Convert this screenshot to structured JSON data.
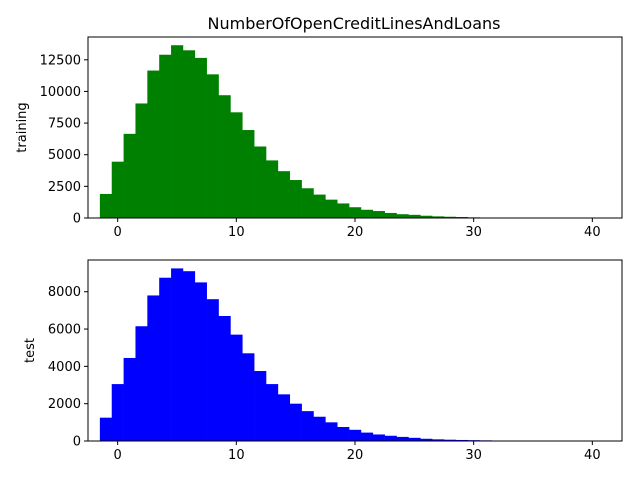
{
  "chart_data": [
    {
      "type": "bar",
      "title": "NumberOfOpenCreditLinesAndLoans",
      "xlabel": "",
      "ylabel": "training",
      "color": "#008000",
      "bin_width": 1,
      "x": [
        -1,
        0,
        1,
        2,
        3,
        4,
        5,
        6,
        7,
        8,
        9,
        10,
        11,
        12,
        13,
        14,
        15,
        16,
        17,
        18,
        19,
        20,
        21,
        22,
        23,
        24,
        25,
        26,
        27,
        28,
        29,
        30,
        31,
        32,
        33,
        34,
        35,
        36,
        37,
        38,
        39,
        40
      ],
      "values": [
        1900,
        4450,
        6650,
        9050,
        11650,
        12900,
        13650,
        13250,
        12650,
        11350,
        9700,
        8350,
        6950,
        5650,
        4550,
        3700,
        3000,
        2350,
        1850,
        1450,
        1150,
        850,
        650,
        550,
        400,
        300,
        250,
        180,
        130,
        100,
        80,
        50,
        40,
        30,
        20,
        15,
        10,
        10,
        5,
        5,
        5,
        5
      ],
      "xlim": [
        -2.5,
        42.5
      ],
      "ylim": [
        0,
        14300
      ],
      "xticks": [
        "0",
        "10",
        "20",
        "30",
        "40"
      ],
      "yticks": [
        "0",
        "2500",
        "5000",
        "7500",
        "10000",
        "12500"
      ]
    },
    {
      "type": "bar",
      "title": "",
      "xlabel": "",
      "ylabel": "test",
      "color": "#0000ff",
      "bin_width": 1,
      "x": [
        -1,
        0,
        1,
        2,
        3,
        4,
        5,
        6,
        7,
        8,
        9,
        10,
        11,
        12,
        13,
        14,
        15,
        16,
        17,
        18,
        19,
        20,
        21,
        22,
        23,
        24,
        25,
        26,
        27,
        28,
        29,
        30,
        31,
        32,
        33,
        34,
        35,
        36,
        37,
        38,
        39,
        40
      ],
      "values": [
        1250,
        3050,
        4450,
        6150,
        7800,
        8750,
        9250,
        9100,
        8500,
        7600,
        6700,
        5700,
        4700,
        3750,
        3050,
        2500,
        2000,
        1600,
        1300,
        1000,
        750,
        600,
        450,
        350,
        280,
        220,
        170,
        120,
        90,
        70,
        55,
        45,
        35,
        25,
        18,
        12,
        10,
        8,
        5,
        5,
        5,
        5
      ],
      "xlim": [
        -2.5,
        42.5
      ],
      "ylim": [
        0,
        9700
      ],
      "xticks": [
        "0",
        "10",
        "20",
        "30",
        "40"
      ],
      "yticks": [
        "0",
        "2000",
        "4000",
        "6000",
        "8000"
      ]
    }
  ]
}
